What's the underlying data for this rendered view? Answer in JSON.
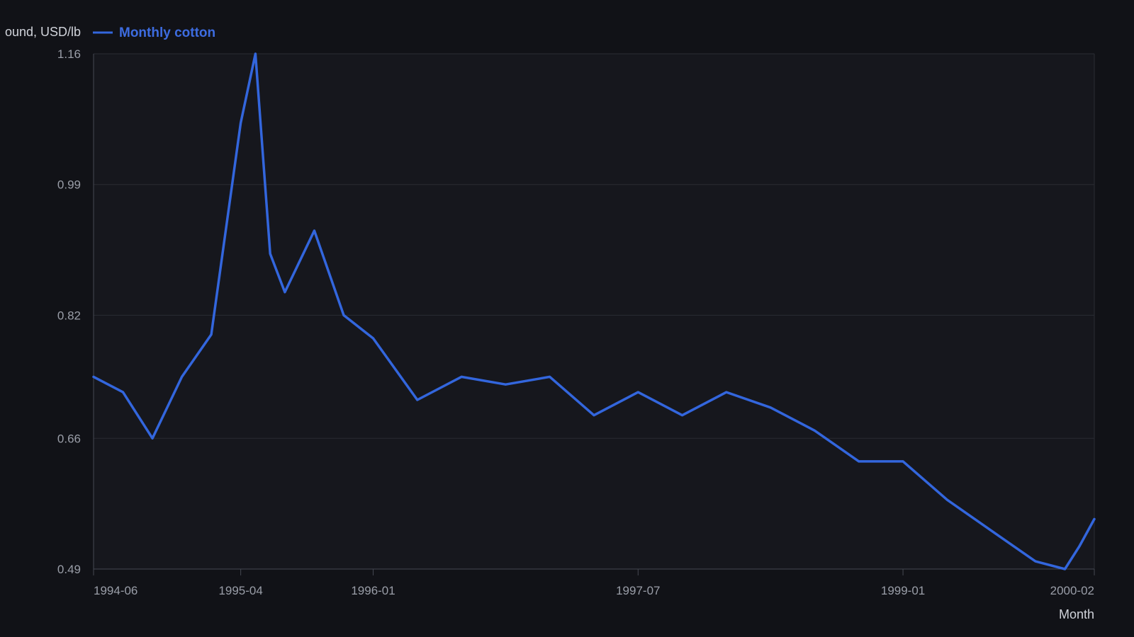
{
  "chart_data": {
    "type": "line",
    "ylabel": "ound, USD/lb",
    "xlabel": "Month",
    "ylim": [
      0.49,
      1.16
    ],
    "yticks": [
      0.49,
      0.66,
      0.82,
      0.99,
      1.16
    ],
    "xlim": [
      "1994-06",
      "2000-02"
    ],
    "xticks": [
      "1994-06",
      "1995-04",
      "1996-01",
      "1997-07",
      "1999-01",
      "2000-02"
    ],
    "grid": true,
    "legend_position": "top-left",
    "series": [
      {
        "name": "Monthly cotton",
        "color": "#3366dd",
        "x": [
          "1994-06",
          "1994-08",
          "1994-10",
          "1994-12",
          "1995-02",
          "1995-04",
          "1995-05",
          "1995-06",
          "1995-07",
          "1995-09",
          "1995-11",
          "1996-01",
          "1996-04",
          "1996-07",
          "1996-10",
          "1997-01",
          "1997-04",
          "1997-07",
          "1997-10",
          "1998-01",
          "1998-04",
          "1998-07",
          "1998-10",
          "1999-01",
          "1999-04",
          "1999-07",
          "1999-10",
          "1999-12",
          "2000-01",
          "2000-02"
        ],
        "values": [
          0.74,
          0.72,
          0.66,
          0.74,
          0.795,
          1.07,
          1.16,
          0.9,
          0.85,
          0.93,
          0.82,
          0.79,
          0.71,
          0.74,
          0.73,
          0.74,
          0.69,
          0.72,
          0.69,
          0.72,
          0.7,
          0.67,
          0.63,
          0.63,
          0.58,
          0.54,
          0.5,
          0.49,
          0.52,
          0.555
        ]
      }
    ]
  }
}
